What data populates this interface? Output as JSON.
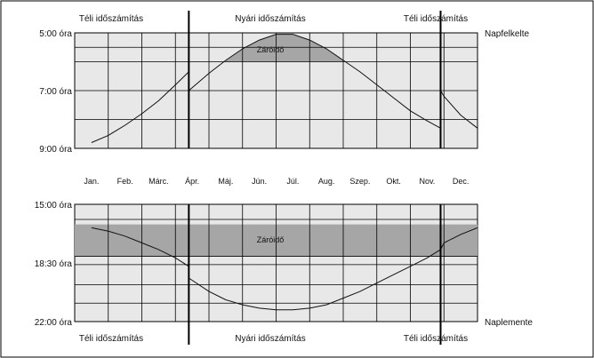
{
  "chart_data": [
    {
      "type": "line",
      "title": "",
      "ylabel": "",
      "y_ticks": [
        "5:00 óra",
        "7:00 óra",
        "9:00 óra"
      ],
      "ylim_hours": [
        5,
        9
      ],
      "months": [
        "Jan.",
        "Feb.",
        "Márc.",
        "Ápr.",
        "Máj.",
        "Jún.",
        "Júl.",
        "Aug.",
        "Szep.",
        "Okt.",
        "Nov.",
        "Dec."
      ],
      "right_label": "Napfelkelte",
      "top_labels": [
        "Téli időszámítás",
        "Nyári időszámítás",
        "Téli időszámítás"
      ],
      "shaded_label": "Záróidő",
      "dst_boundaries_month": [
        3.4,
        10.9
      ],
      "closing_hour": 6.0,
      "series": {
        "x_month": [
          0.5,
          1,
          1.5,
          2,
          2.5,
          3,
          3.4,
          3.4,
          4,
          4.5,
          5,
          5.5,
          6,
          6.5,
          7,
          7.5,
          8,
          8.5,
          9,
          9.5,
          10,
          10.5,
          10.9,
          10.9,
          11,
          11.5,
          12
        ],
        "hour": [
          8.8,
          8.55,
          8.2,
          7.8,
          7.35,
          6.8,
          6.35,
          7.0,
          6.4,
          5.95,
          5.55,
          5.25,
          5.05,
          5.05,
          5.25,
          5.55,
          5.95,
          6.35,
          6.8,
          7.25,
          7.7,
          8.05,
          8.3,
          7.0,
          7.2,
          7.85,
          8.3
        ]
      }
    },
    {
      "type": "line",
      "title": "",
      "ylabel": "",
      "y_ticks": [
        "15:00 óra",
        "18:30 óra",
        "22:00 óra"
      ],
      "ylim_hours": [
        15,
        22
      ],
      "right_label": "Naplemente",
      "bottom_labels": [
        "Téli időszámítás",
        "Nyári időszámítás",
        "Téli időszámítás"
      ],
      "shaded_label": "Záróidő",
      "shaded_hours": [
        16.2,
        18.1
      ],
      "series": {
        "x_month": [
          0.5,
          1,
          1.5,
          2,
          2.5,
          3,
          3.4,
          3.4,
          4,
          4.5,
          5,
          5.5,
          6,
          6.5,
          7,
          7.5,
          8,
          8.5,
          9,
          9.5,
          10,
          10.5,
          10.9,
          10.9,
          11,
          11.5,
          12
        ],
        "hour": [
          16.4,
          16.6,
          16.9,
          17.3,
          17.7,
          18.2,
          18.7,
          19.4,
          20.2,
          20.7,
          21.0,
          21.2,
          21.3,
          21.3,
          21.2,
          21.0,
          20.6,
          20.2,
          19.7,
          19.2,
          18.7,
          18.2,
          17.7,
          17.7,
          17.3,
          16.8,
          16.4
        ]
      }
    }
  ],
  "colors": {
    "grid_fill": "#e8e8e8",
    "shade": "#a6a6a6",
    "line": "#111111"
  }
}
